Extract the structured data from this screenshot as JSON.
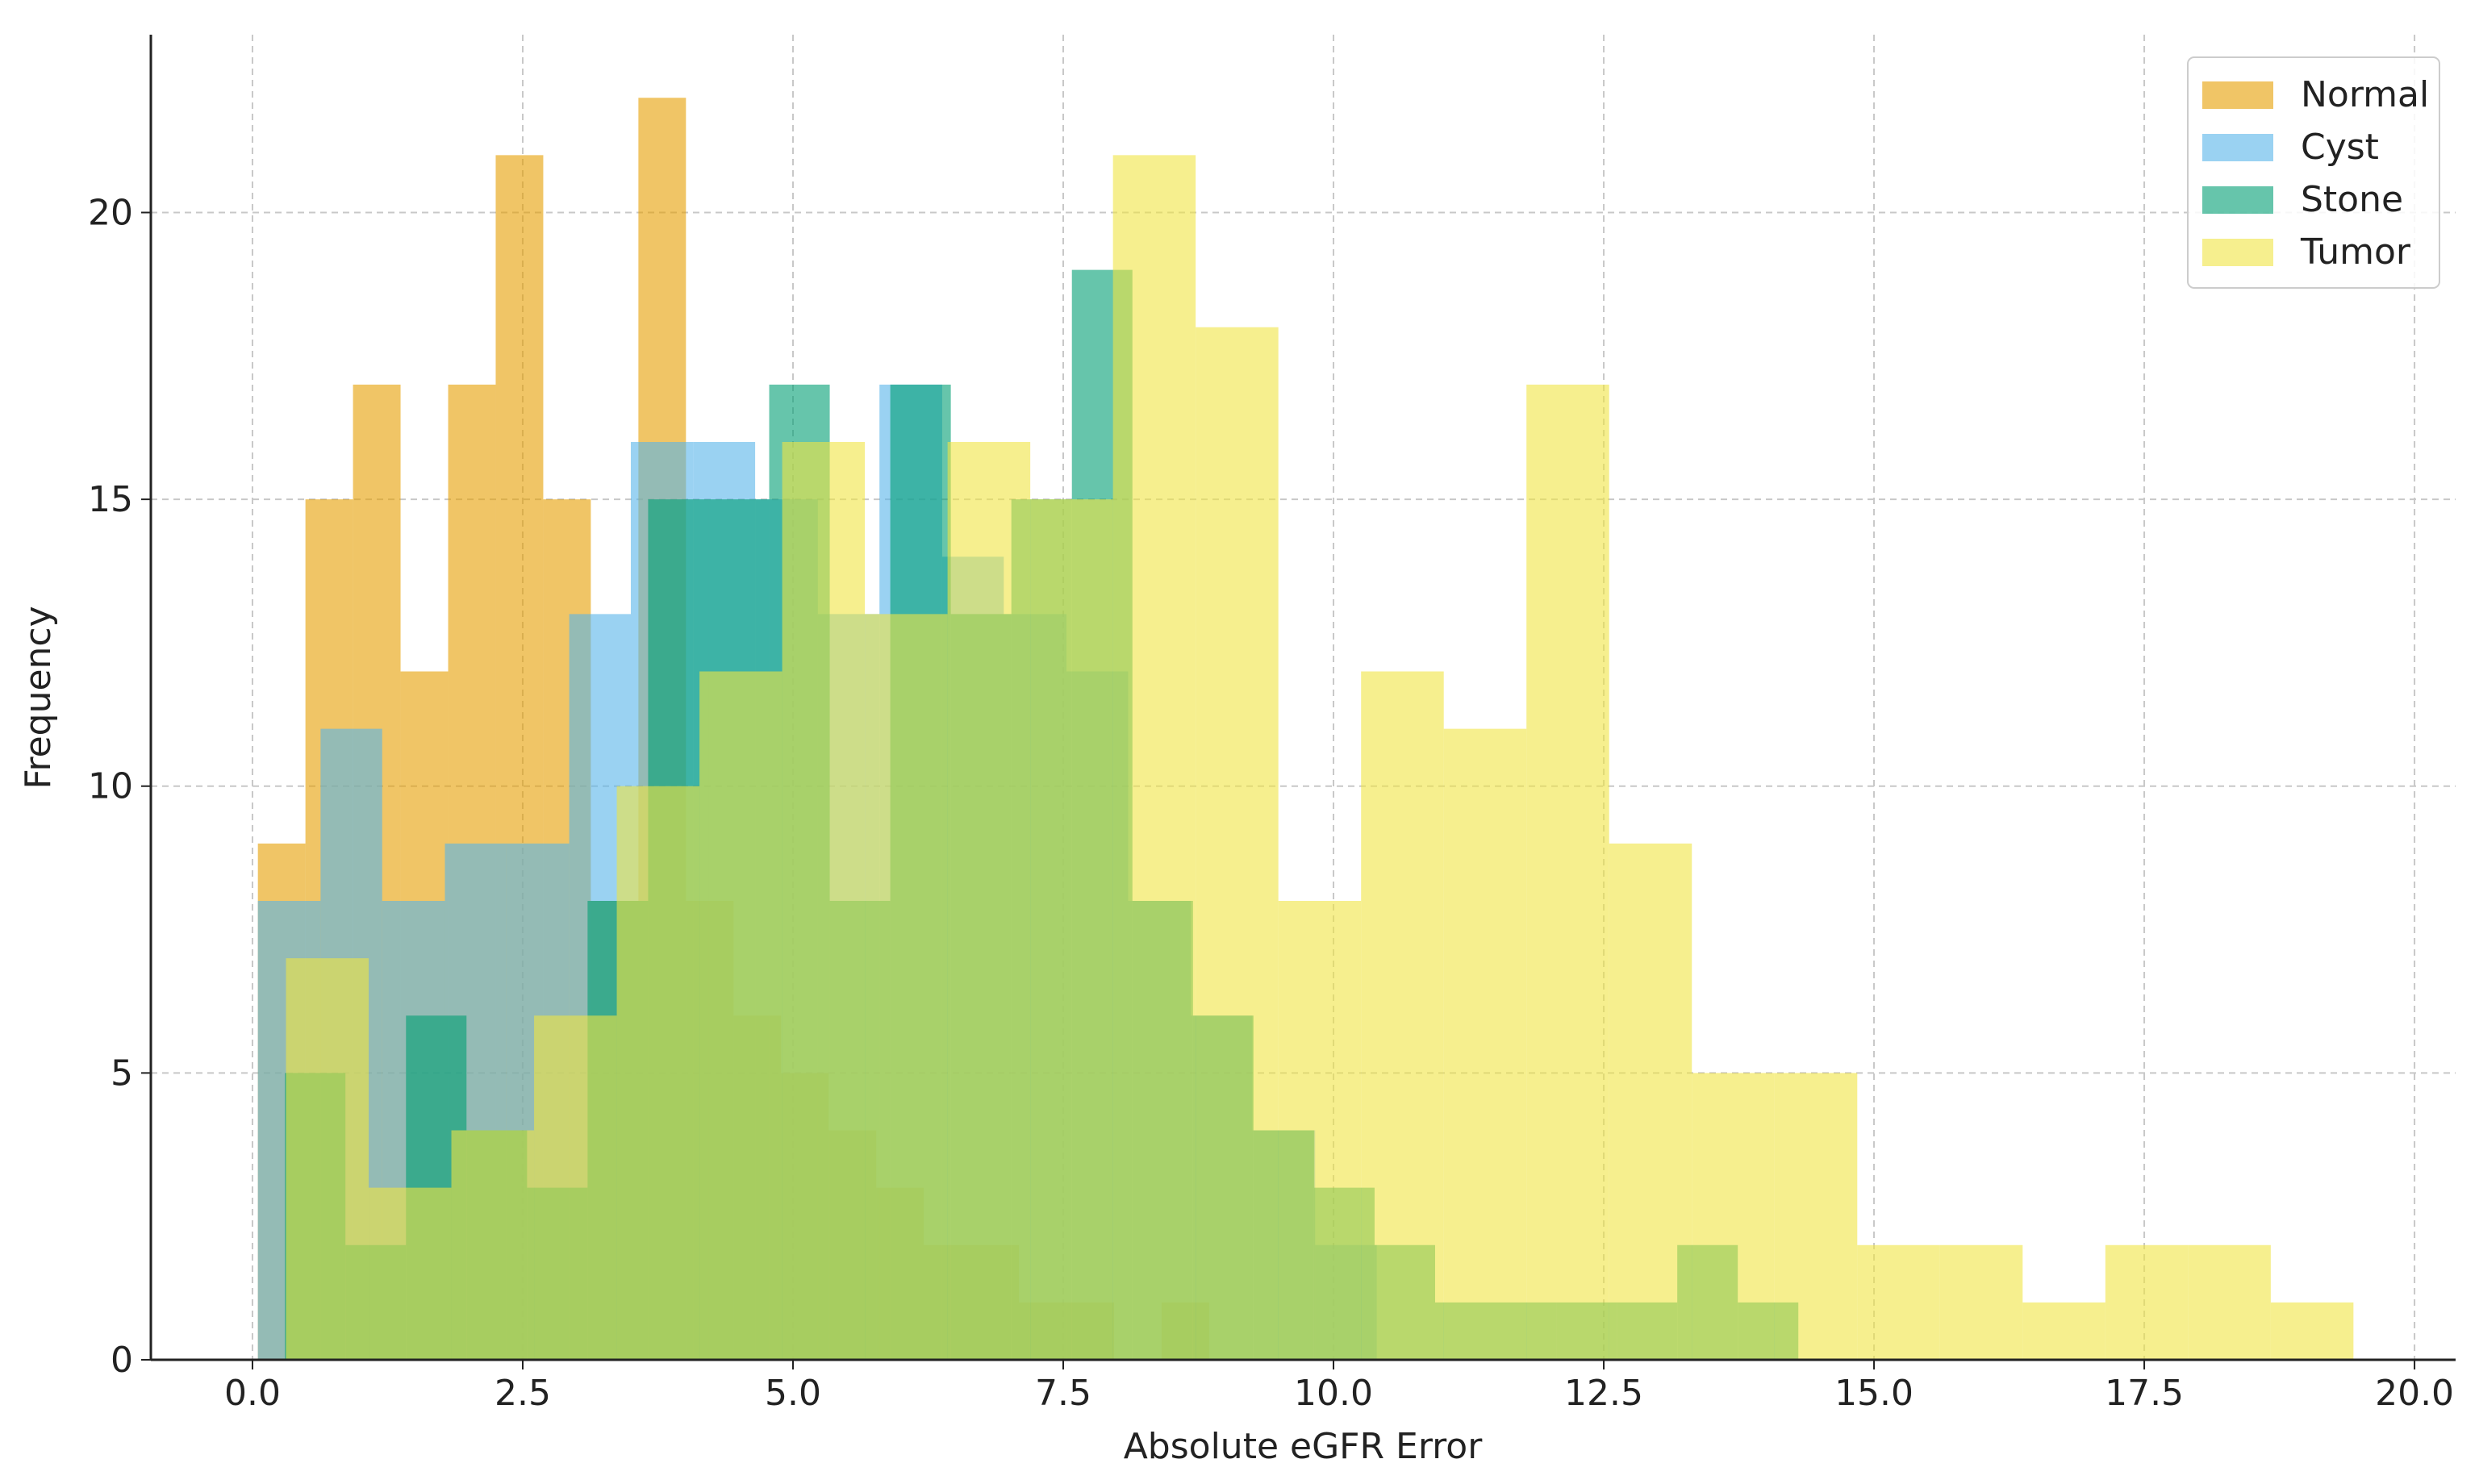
{
  "chart_data": {
    "type": "histogram",
    "x_label": "Absolute eGFR Error",
    "y_label": "Frequency",
    "xlim": [
      -0.94,
      20.38
    ],
    "ylim": [
      0,
      23.1
    ],
    "xticks": [
      {
        "value": 0,
        "label": "0.0"
      },
      {
        "value": 2.5,
        "label": "2.5"
      },
      {
        "value": 5,
        "label": "5.0"
      },
      {
        "value": 7.5,
        "label": "7.5"
      },
      {
        "value": 10,
        "label": "10.0"
      },
      {
        "value": 12.5,
        "label": "12.5"
      },
      {
        "value": 15,
        "label": "15.0"
      },
      {
        "value": 17.5,
        "label": "17.5"
      },
      {
        "value": 20,
        "label": "20.0"
      }
    ],
    "yticks": [
      0,
      5,
      10,
      15,
      20
    ],
    "grid": true,
    "legend": "upper right",
    "opacity": 0.6,
    "series": [
      {
        "name": "Normal",
        "color": "#E69F00",
        "bins": [
          0.05,
          0.49,
          0.93,
          1.37,
          1.81,
          2.25,
          2.69,
          3.13,
          3.57,
          4.01,
          4.45,
          4.89,
          5.33,
          5.77,
          6.21,
          6.65,
          7.09,
          7.53,
          7.97,
          8.41,
          8.85
        ],
        "values": [
          9,
          15,
          17,
          12,
          17,
          21,
          15,
          8,
          22,
          8,
          6,
          5,
          4,
          3,
          2,
          2,
          1,
          1,
          0,
          1
        ]
      },
      {
        "name": "Cyst",
        "color": "#56B4E9",
        "bins": [
          0.05,
          0.63,
          1.2,
          1.78,
          2.35,
          2.93,
          3.5,
          4.08,
          4.65,
          5.23,
          5.8,
          6.38,
          6.95,
          7.53,
          8.1,
          8.68,
          9.25,
          9.83,
          10.4
        ],
        "values": [
          8,
          11,
          8,
          9,
          9,
          13,
          16,
          16,
          15,
          13,
          17,
          14,
          13,
          12,
          8,
          6,
          4,
          2
        ]
      },
      {
        "name": "Stone",
        "color": "#009E73",
        "bins": [
          0.3,
          0.86,
          1.42,
          1.98,
          2.54,
          3.1,
          3.66,
          4.22,
          4.78,
          5.34,
          5.9,
          6.46,
          7.02,
          7.58,
          8.14,
          8.7,
          9.26,
          9.82,
          10.38,
          10.94,
          11.5,
          12.06,
          12.62,
          13.18,
          13.74,
          14.3
        ],
        "values": [
          5,
          2,
          6,
          4,
          3,
          8,
          15,
          15,
          17,
          8,
          17,
          13,
          15,
          19,
          8,
          6,
          4,
          3,
          2,
          1,
          1,
          1,
          1,
          2,
          1
        ]
      },
      {
        "name": "Tumor",
        "color": "#F0E442",
        "bins": [
          0.31,
          1.075,
          1.84,
          2.605,
          3.37,
          4.135,
          4.9,
          5.665,
          6.43,
          7.195,
          7.96,
          8.725,
          9.49,
          10.255,
          11.02,
          11.785,
          12.55,
          13.315,
          14.08,
          14.845,
          15.61,
          16.375,
          17.14,
          17.905,
          18.67,
          19.435
        ],
        "values": [
          7,
          3,
          4,
          6,
          10,
          12,
          16,
          13,
          16,
          15,
          21,
          18,
          8,
          12,
          11,
          17,
          9,
          5,
          5,
          2,
          2,
          1,
          2,
          2,
          1
        ]
      }
    ]
  }
}
